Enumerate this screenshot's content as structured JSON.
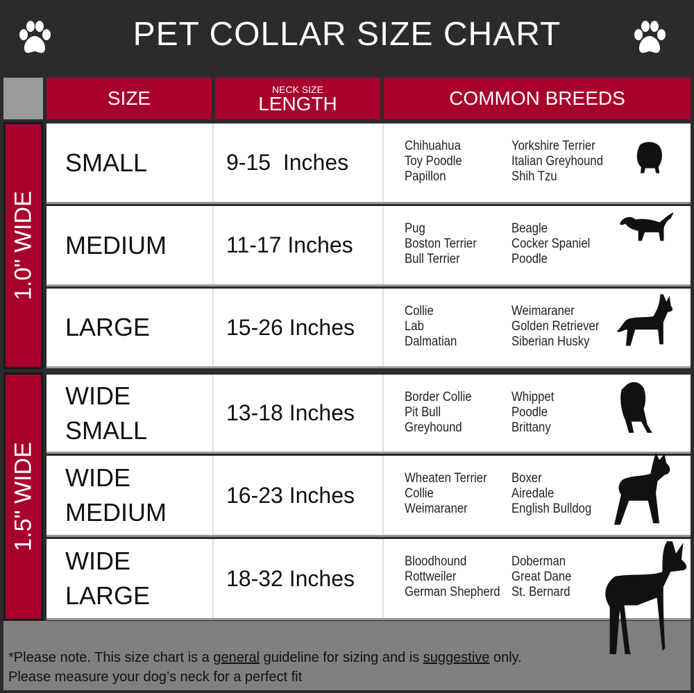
{
  "title": "PET COLLAR SIZE CHART",
  "colors": {
    "header_bg": "#2b2b2b",
    "accent_red": "#a8002c",
    "footer_gray": "#808083"
  },
  "icons": {
    "left": "paw-icon",
    "right": "paw-icon"
  },
  "headers": {
    "size": "SIZE",
    "neck_small": "NECK SIZE",
    "length": "LENGTH",
    "breeds": "COMMON BREEDS"
  },
  "groups": [
    {
      "label": "1.0\" WIDE"
    },
    {
      "label": "1.5\" WIDE"
    }
  ],
  "rows": [
    {
      "size": [
        "SMALL"
      ],
      "length": "9-15  Inches",
      "breeds_a": [
        "Chihuahua",
        "Toy Poodle",
        "Papillon"
      ],
      "breeds_b": [
        "Yorkshire Terrier",
        "Italian Greyhound",
        "Shih Tzu"
      ],
      "icon": "small-dog-silhouette-icon"
    },
    {
      "size": [
        "MEDIUM"
      ],
      "length": "11-17 Inches",
      "breeds_a": [
        "Pug",
        "Boston Terrier",
        "Bull Terrier"
      ],
      "breeds_b": [
        "Beagle",
        "Cocker Spaniel",
        "Poodle"
      ],
      "icon": "medium-dog-silhouette-icon"
    },
    {
      "size": [
        "LARGE"
      ],
      "length": "15-26 Inches",
      "breeds_a": [
        "Collie",
        "Lab",
        "Dalmatian"
      ],
      "breeds_b": [
        "Weimaraner",
        "Golden Retriever",
        "Siberian Husky"
      ],
      "icon": "large-dog-silhouette-icon"
    },
    {
      "size": [
        "WIDE",
        "SMALL"
      ],
      "length": "13-18 Inches",
      "breeds_a": [
        "Border Collie",
        "Pit Bull",
        "Greyhound"
      ],
      "breeds_b": [
        "Whippet",
        "Poodle",
        "Brittany"
      ],
      "icon": "bulldog-silhouette-icon"
    },
    {
      "size": [
        "WIDE",
        "MEDIUM"
      ],
      "length": "16-23 Inches",
      "breeds_a": [
        "Wheaten Terrier",
        "Collie",
        "Weimaraner"
      ],
      "breeds_b": [
        "Boxer",
        "Airedale",
        "English Bulldog"
      ],
      "icon": "pitbull-silhouette-icon"
    },
    {
      "size": [
        "WIDE",
        "LARGE"
      ],
      "length": "18-32 Inches",
      "breeds_a": [
        "Bloodhound",
        "Rottweiler",
        "German Shepherd"
      ],
      "breeds_b": [
        "Doberman",
        "Great Dane",
        "St. Bernard"
      ],
      "icon": "doberman-silhouette-icon"
    }
  ],
  "footer": {
    "prefix": "*Please note. This size chart is a ",
    "u1": "general",
    "mid": " guideline for sizing and is ",
    "u2": "suggestive",
    "suffix": " only.",
    "line2": "Please measure your dog’s neck for a perfect fit"
  }
}
